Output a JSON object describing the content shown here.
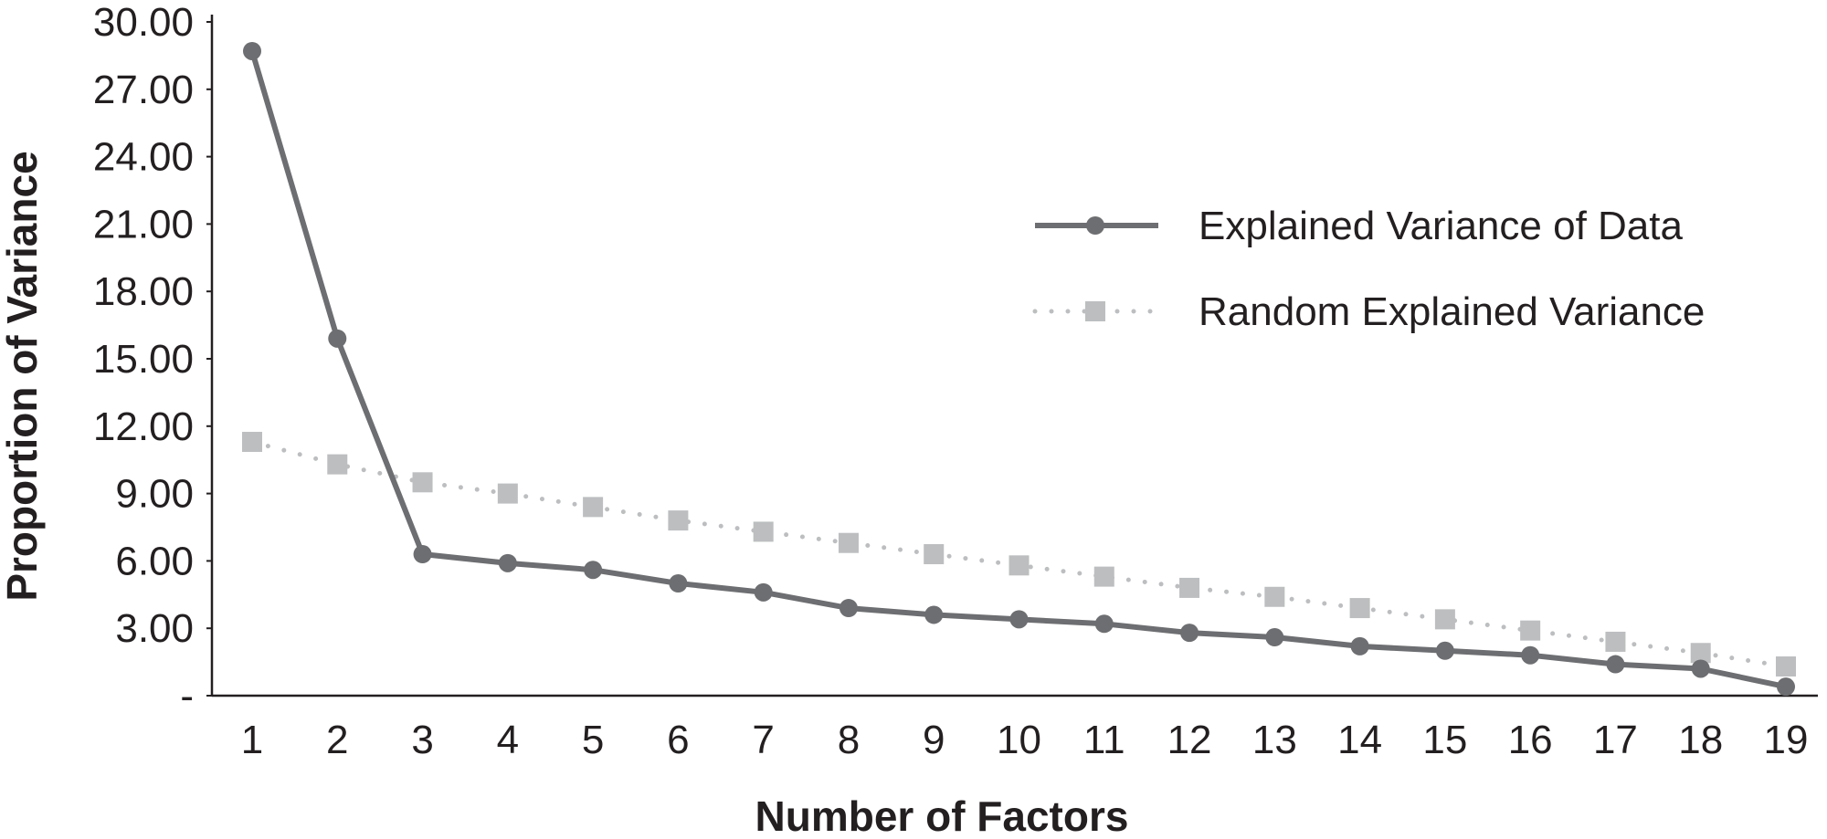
{
  "chart_data": {
    "type": "line",
    "title": "",
    "xlabel": "Number of Factors",
    "ylabel": "Proportion of Variance",
    "x": [
      1,
      2,
      3,
      4,
      5,
      6,
      7,
      8,
      9,
      10,
      11,
      12,
      13,
      14,
      15,
      16,
      17,
      18,
      19
    ],
    "x_tick_labels": [
      "1",
      "2",
      "3",
      "4",
      "5",
      "6",
      "7",
      "8",
      "9",
      "10",
      "11",
      "12",
      "13",
      "14",
      "15",
      "16",
      "17",
      "18",
      "19"
    ],
    "y_ticks": [
      0,
      3,
      6,
      9,
      12,
      15,
      18,
      21,
      24,
      27,
      30
    ],
    "y_tick_labels": [
      "-",
      "3.00",
      "6.00",
      "9.00",
      "12.00",
      "15.00",
      "18.00",
      "21.00",
      "24.00",
      "27.00",
      "30.00"
    ],
    "ylim": [
      0,
      30
    ],
    "grid": false,
    "legend_position": "right",
    "series": [
      {
        "name": "Explained Variance of Data",
        "style": "solid",
        "marker": "circle",
        "color": "#6d6e71",
        "values": [
          28.7,
          15.9,
          6.3,
          5.9,
          5.6,
          5.0,
          4.6,
          3.9,
          3.6,
          3.4,
          3.2,
          2.8,
          2.6,
          2.2,
          2.0,
          1.8,
          1.4,
          1.2,
          0.4
        ]
      },
      {
        "name": "Random Explained Variance",
        "style": "dotted",
        "marker": "square",
        "color": "#bcbec0",
        "values": [
          11.3,
          10.3,
          9.5,
          9.0,
          8.4,
          7.8,
          7.3,
          6.8,
          6.3,
          5.8,
          5.3,
          4.8,
          4.4,
          3.9,
          3.4,
          2.9,
          2.4,
          1.9,
          1.3
        ]
      }
    ]
  }
}
